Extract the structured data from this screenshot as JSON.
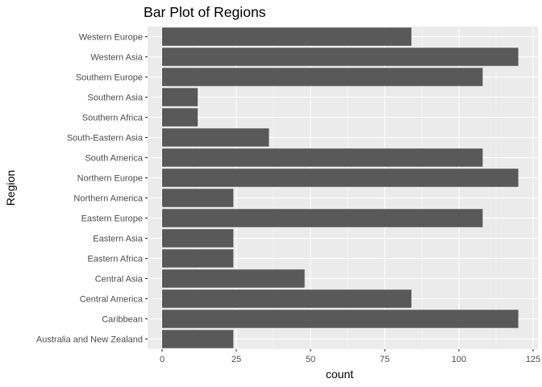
{
  "chart_data": {
    "type": "bar",
    "orientation": "horizontal",
    "title": "Bar Plot of Regions",
    "xlabel": "count",
    "ylabel": "Region",
    "categories": [
      "Western Europe",
      "Western Asia",
      "Southern Europe",
      "Southern Asia",
      "Southern Africa",
      "South-Eastern Asia",
      "South America",
      "Northern Europe",
      "Northern America",
      "Eastern Europe",
      "Eastern Asia",
      "Eastern Africa",
      "Central Asia",
      "Central America",
      "Caribbean",
      "Australia and New Zealand"
    ],
    "values": [
      84,
      120,
      108,
      12,
      12,
      36,
      108,
      120,
      24,
      108,
      24,
      24,
      48,
      84,
      120,
      24
    ],
    "xlim": [
      0,
      126
    ],
    "xticks": [
      0,
      25,
      50,
      75,
      100,
      125
    ],
    "xtick_labels": [
      "0",
      "25",
      "50",
      "75",
      "100",
      "125"
    ],
    "grid": true,
    "colors": {
      "panel": "#ebebeb",
      "grid_major": "#ffffff",
      "bar": "#595959",
      "tick": "#333333"
    }
  }
}
